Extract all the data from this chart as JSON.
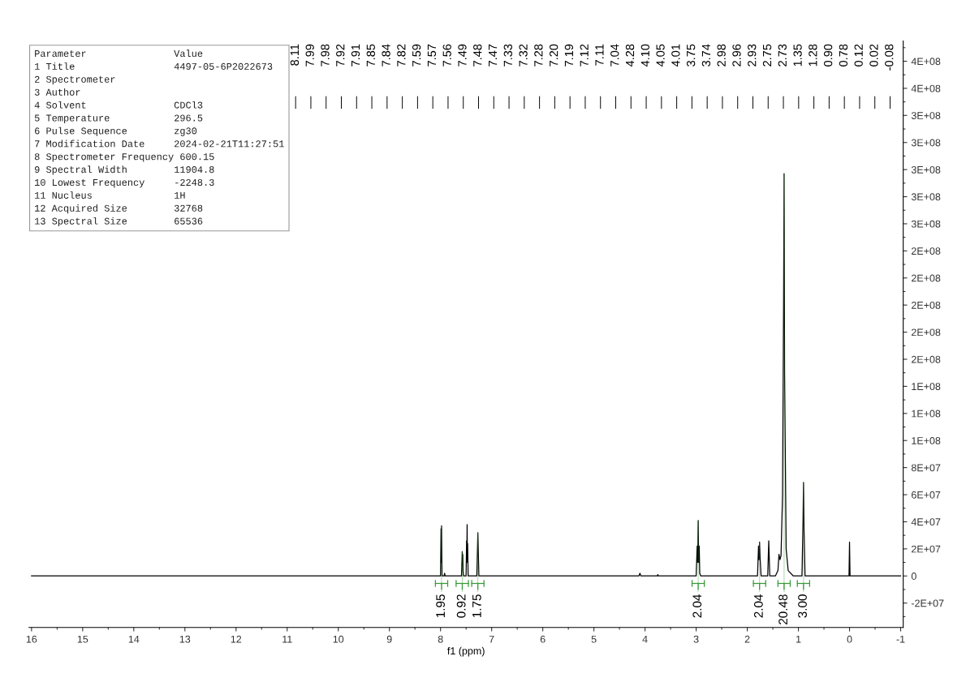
{
  "chart_data": {
    "type": "line",
    "xlabel": "f1 (ppm)",
    "x": [
      16,
      8.05,
      8.0,
      7.99,
      7.985,
      7.98,
      7.97,
      7.93,
      7.92,
      7.91,
      7.59,
      7.575,
      7.57,
      7.565,
      7.56,
      7.55,
      7.5,
      7.49,
      7.485,
      7.48,
      7.475,
      7.47,
      7.46,
      7.29,
      7.27,
      7.25,
      4.12,
      4.1,
      4.08,
      3.76,
      3.75,
      3.74,
      3.0,
      2.98,
      2.97,
      2.96,
      2.95,
      2.94,
      2.93,
      2.91,
      1.8,
      1.78,
      1.77,
      1.76,
      1.75,
      1.73,
      1.6,
      1.58,
      1.56,
      1.45,
      1.4,
      1.38,
      1.36,
      1.34,
      1.31,
      1.29,
      1.28,
      1.27,
      1.24,
      1.2,
      1.1,
      0.93,
      0.91,
      0.9,
      0.89,
      0.87,
      0.01,
      0.0,
      -0.01,
      -1
    ],
    "series": [
      {
        "color": "#000000",
        "values": [
          0,
          0,
          0,
          35000000,
          10000000,
          37000000,
          0,
          0,
          2000000,
          0,
          0,
          18000000,
          8000000,
          16000000,
          4000000,
          0,
          0,
          26000000,
          12000000,
          38000000,
          10000000,
          24000000,
          0,
          0,
          32000000,
          0,
          0,
          2000000,
          0,
          0,
          1000000,
          0,
          0,
          22000000,
          10000000,
          41000000,
          10000000,
          22000000,
          2000000,
          0,
          0,
          22000000,
          12000000,
          25000000,
          14000000,
          0,
          0,
          26000000,
          0,
          0,
          4000000,
          16000000,
          12000000,
          15000000,
          60000000,
          200000000,
          297000000,
          150000000,
          20000000,
          4000000,
          0,
          0,
          40000000,
          69000000,
          35000000,
          0,
          0,
          25000000,
          0,
          0
        ]
      }
    ],
    "xlim": [
      16.05,
      -1.05
    ],
    "xticks": [
      16,
      15,
      14,
      13,
      12,
      11,
      10,
      9,
      8,
      7,
      6,
      5,
      4,
      3,
      2,
      1,
      0,
      -1
    ],
    "ylim": [
      -38000000,
      395000000
    ],
    "yticks": [
      {
        "value": -20000000,
        "label": "-2E+07"
      },
      {
        "value": 0,
        "label": "0"
      },
      {
        "value": 20000000,
        "label": "2E+07"
      },
      {
        "value": 40000000,
        "label": "4E+07"
      },
      {
        "value": 60000000,
        "label": "6E+07"
      },
      {
        "value": 80000000,
        "label": "8E+07"
      },
      {
        "value": 100000000,
        "label": "1E+08"
      },
      {
        "value": 120000000,
        "label": "1E+08"
      },
      {
        "value": 140000000,
        "label": "1E+08"
      },
      {
        "value": 160000000,
        "label": "2E+08"
      },
      {
        "value": 180000000,
        "label": "2E+08"
      },
      {
        "value": 200000000,
        "label": "2E+08"
      },
      {
        "value": 220000000,
        "label": "2E+08"
      },
      {
        "value": 240000000,
        "label": "2E+08"
      },
      {
        "value": 260000000,
        "label": "3E+08"
      },
      {
        "value": 280000000,
        "label": "3E+08"
      },
      {
        "value": 300000000,
        "label": "3E+08"
      },
      {
        "value": 320000000,
        "label": "3E+08"
      },
      {
        "value": 340000000,
        "label": "3E+08"
      },
      {
        "value": 360000000,
        "label": "4E+08"
      },
      {
        "value": 380000000,
        "label": "4E+08"
      }
    ],
    "grid": false,
    "marker": "none",
    "line_style": "solid",
    "annotations": [
      "Parameter               Value\n1 Title                 4497-05-6P2022673\n2 Spectrometer\n3 Author\n4 Solvent               CDCl3\n5 Temperature           296.5\n6 Pulse Sequence        zg30\n7 Modification Date     2024-02-21T11:27:51\n8 Spectrometer Frequency 600.15\n9 Spectral Width        11904.8\n10 Lowest Frequency     -2248.3\n11 Nucleus              1H\n12 Acquired Size        32768\n13 Spectral Size        65536",
      "8.11",
      "7.99",
      "7.98",
      "7.92",
      "7.91",
      "7.85",
      "7.84",
      "7.82",
      "7.59",
      "7.57",
      "7.56",
      "7.49",
      "7.48",
      "7.47",
      "7.33",
      "7.32",
      "7.28",
      "7.20",
      "7.19",
      "7.12",
      "7.11",
      "7.04",
      "4.28",
      "4.10",
      "4.05",
      "4.01",
      "3.75",
      "3.74",
      "2.98",
      "2.96",
      "2.93",
      "2.75",
      "2.73",
      "1.35",
      "1.28",
      "0.90",
      "0.78",
      "0.12",
      "0.02",
      "-0.08",
      {
        "text": "1.95",
        "x": 7.98,
        "y": 37000000
      },
      {
        "text": "0.92",
        "x": 7.575,
        "y": 18000000
      },
      {
        "text": "1.75",
        "x": 7.27,
        "y": 32000000
      },
      {
        "text": "2.04",
        "x": 2.96,
        "y": 41000000
      },
      {
        "text": "2.04",
        "x": 1.76,
        "y": 25000000
      },
      {
        "text": "20.48",
        "x": 1.28,
        "y": 297000000
      },
      {
        "text": "3.00",
        "x": 0.9,
        "y": 69000000
      }
    ]
  }
}
